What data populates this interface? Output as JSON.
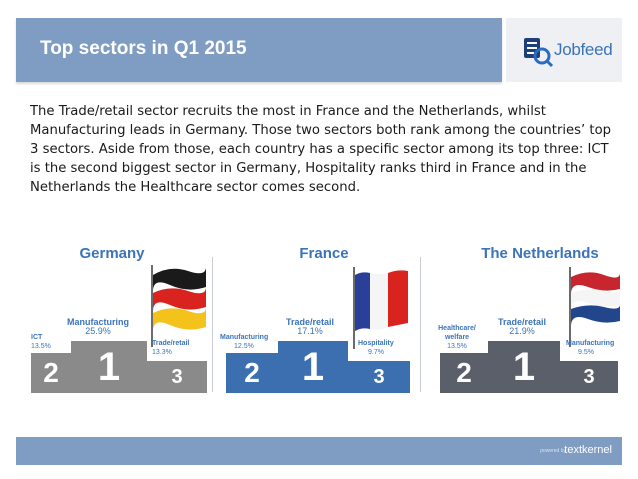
{
  "header": {
    "title": "Top sectors in Q1 2015",
    "logo_text": "Jobfeed"
  },
  "intro": "The Trade/retail sector recruits the most in France and the Netherlands, whilst Manufacturing leads in Germany. Those two sectors both rank among the countries’ top 3 sectors. Aside from those, each country has a specific sector among its top three: ICT is the second biggest sector in Germany, Hospitality ranks third in France and in the Netherlands  the Healthcare sector comes second.",
  "podiums": [
    {
      "country": "Germany",
      "first": {
        "label": "Manufacturing",
        "value": "25.9%",
        "rank": "1"
      },
      "second": {
        "label": "ICT",
        "value": "13.5%",
        "rank": "2"
      },
      "third": {
        "label": "Trade/retail",
        "value": "13.3%",
        "rank": "3"
      }
    },
    {
      "country": "France",
      "first": {
        "label": "Trade/retail",
        "value": "17.1%",
        "rank": "1"
      },
      "second": {
        "label": "Manufacturing",
        "value": "12.5%",
        "rank": "2"
      },
      "third": {
        "label": "Hospitality",
        "value": "9.7%",
        "rank": "3"
      }
    },
    {
      "country": "The Netherlands",
      "first": {
        "label": "Trade/retail",
        "value": "21.9%",
        "rank": "1"
      },
      "second": {
        "label": "Healthcare/ welfare",
        "value": "13.5%",
        "rank": "2"
      },
      "third": {
        "label": "Manufacturing",
        "value": "9.5%",
        "rank": "3"
      }
    }
  ],
  "footer": {
    "powered_by": "powered by",
    "brand": "textkernel"
  },
  "colors": {
    "accent": "#7f9cc3",
    "label_blue": "#3b74b8",
    "podium_germany": "#8a8a8a",
    "podium_france": "#3b6fb0",
    "podium_netherlands": "#5a5f6a"
  }
}
